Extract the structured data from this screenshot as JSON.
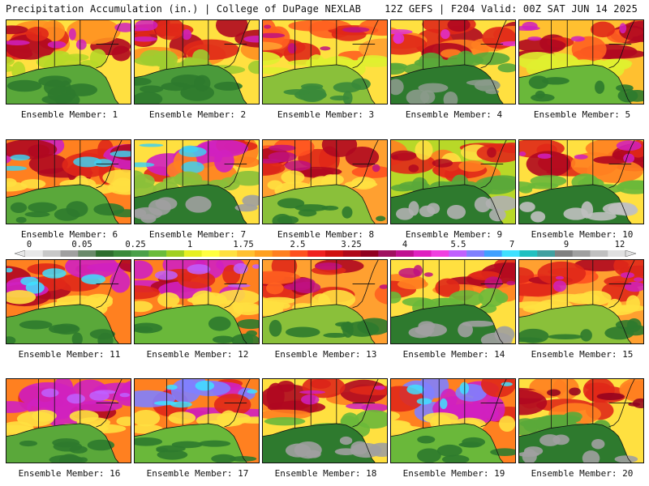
{
  "header": {
    "left_title": "Precipitation Accumulation (in.) | College of DuPage NEXLAB",
    "right_title": "12Z GEFS | F204 Valid: 00Z SAT JUN 14 2025"
  },
  "colorbar": {
    "tick_labels": [
      "0",
      "0.05",
      "0.25",
      "1",
      "1.75",
      "2.5",
      "3.25",
      "4",
      "5.5",
      "7",
      "9",
      "12"
    ],
    "colors": [
      "#e8e8e8",
      "#c8c8c8",
      "#a0a0a0",
      "#6a8a6a",
      "#2e6e2e",
      "#3a8a3a",
      "#4aa04a",
      "#6abc3a",
      "#a0d020",
      "#e6f020",
      "#ffff40",
      "#ffe040",
      "#ffc030",
      "#ffa020",
      "#ff8020",
      "#ff5020",
      "#f02020",
      "#d01010",
      "#b00818",
      "#900020",
      "#a01060",
      "#c01090",
      "#e020c0",
      "#f040e0",
      "#c060ff",
      "#8080ff",
      "#40a0ff",
      "#40e0ff",
      "#20c0c0",
      "#40a0a0",
      "#808080",
      "#a0a0a0",
      "#c0c0c0",
      "#e0e0e0"
    ]
  },
  "panels": [
    {
      "label": "Ensemble Member: 1",
      "palette": [
        "#2e7a2e",
        "#5aa83a",
        "#b8d828",
        "#ffe040",
        "#ff9020",
        "#e02818",
        "#b00820",
        "#d020c0"
      ]
    },
    {
      "label": "Ensemble Member: 2",
      "palette": [
        "#2e7a2e",
        "#4a9a3a",
        "#a0cc30",
        "#ffe040",
        "#ff9020",
        "#e02818",
        "#b00820",
        "#d020c0"
      ]
    },
    {
      "label": "Ensemble Member: 3",
      "palette": [
        "#3a8a3a",
        "#8ac03a",
        "#e0f030",
        "#ffe040",
        "#ffa030",
        "#ff6020",
        "#e02818",
        "#c01080"
      ]
    },
    {
      "label": "Ensemble Member: 4",
      "palette": [
        "#8a9a8a",
        "#2e7a2e",
        "#5aa83a",
        "#ffe040",
        "#ff8020",
        "#e02818",
        "#b00820",
        "#e030d0"
      ]
    },
    {
      "label": "Ensemble Member: 5",
      "palette": [
        "#2e7a2e",
        "#6ab83a",
        "#e0f030",
        "#ffc030",
        "#ff6020",
        "#e02818",
        "#b00820",
        "#d020c0"
      ]
    },
    {
      "label": "Ensemble Member: 6",
      "palette": [
        "#2e7a2e",
        "#5aa83a",
        "#ffe040",
        "#ff8020",
        "#e02818",
        "#b00820",
        "#d020c0",
        "#40d0f0"
      ]
    },
    {
      "label": "Ensemble Member: 7",
      "palette": [
        "#a0a0a0",
        "#2e7a2e",
        "#8ac03a",
        "#ffe040",
        "#ff8020",
        "#e02818",
        "#d020c0",
        "#40d0f0"
      ]
    },
    {
      "label": "Ensemble Member: 8",
      "palette": [
        "#2e7a2e",
        "#8ac03a",
        "#ffe040",
        "#ffa030",
        "#ff5020",
        "#e02818",
        "#b00820",
        "#c01080"
      ]
    },
    {
      "label": "Ensemble Member: 9",
      "palette": [
        "#b0b0b0",
        "#2e7a2e",
        "#5aa83a",
        "#b8d828",
        "#ffe040",
        "#ff8020",
        "#e02818",
        "#b00820"
      ]
    },
    {
      "label": "Ensemble Member: 10",
      "palette": [
        "#c0c0c0",
        "#2e7a2e",
        "#6ab83a",
        "#ffe040",
        "#ff8020",
        "#e02818",
        "#b00820",
        "#d020c0"
      ]
    },
    {
      "label": "Ensemble Member: 11",
      "palette": [
        "#2e7a2e",
        "#5aa83a",
        "#ffe040",
        "#ff8020",
        "#e02818",
        "#b00820",
        "#d020c0",
        "#40e0ff"
      ]
    },
    {
      "label": "Ensemble Member: 12",
      "palette": [
        "#2e7a2e",
        "#6ab83a",
        "#ffe040",
        "#ff8020",
        "#e02818",
        "#b00820",
        "#d020c0",
        "#c060ff"
      ]
    },
    {
      "label": "Ensemble Member: 13",
      "palette": [
        "#2e7a2e",
        "#8ac03a",
        "#ffe040",
        "#ffa030",
        "#ff6020",
        "#e02818",
        "#b00820",
        "#c01080"
      ]
    },
    {
      "label": "Ensemble Member: 14",
      "palette": [
        "#a0a0a0",
        "#2e7a2e",
        "#6ab83a",
        "#ffe040",
        "#ff8020",
        "#e02818",
        "#b00820",
        "#c01080"
      ]
    },
    {
      "label": "Ensemble Member: 15",
      "palette": [
        "#2e7a2e",
        "#8ac03a",
        "#ffe040",
        "#ffa030",
        "#ff5020",
        "#e02818",
        "#b00820",
        "#d020c0"
      ]
    },
    {
      "label": "Ensemble Member: 16",
      "palette": [
        "#2e7a2e",
        "#5aa83a",
        "#ffe040",
        "#ff8020",
        "#e02818",
        "#b00820",
        "#d020c0",
        "#c060ff"
      ]
    },
    {
      "label": "Ensemble Member: 17",
      "palette": [
        "#2e7a2e",
        "#6ab83a",
        "#ffe040",
        "#ff8020",
        "#e02818",
        "#d020c0",
        "#8080ff",
        "#40e0ff"
      ]
    },
    {
      "label": "Ensemble Member: 18",
      "palette": [
        "#a0a0a0",
        "#2e7a2e",
        "#6ab83a",
        "#ffe040",
        "#ff8020",
        "#e02818",
        "#b00820",
        "#d020c0"
      ]
    },
    {
      "label": "Ensemble Member: 19",
      "palette": [
        "#2e7a2e",
        "#6ab83a",
        "#ffe040",
        "#ff8020",
        "#e02818",
        "#d020c0",
        "#8080ff",
        "#40e0ff"
      ]
    },
    {
      "label": "Ensemble Member: 20",
      "palette": [
        "#a0a0a0",
        "#2e7a2e",
        "#5aa83a",
        "#ffe040",
        "#ff8020",
        "#e02818",
        "#b00820",
        "#900020"
      ]
    }
  ]
}
